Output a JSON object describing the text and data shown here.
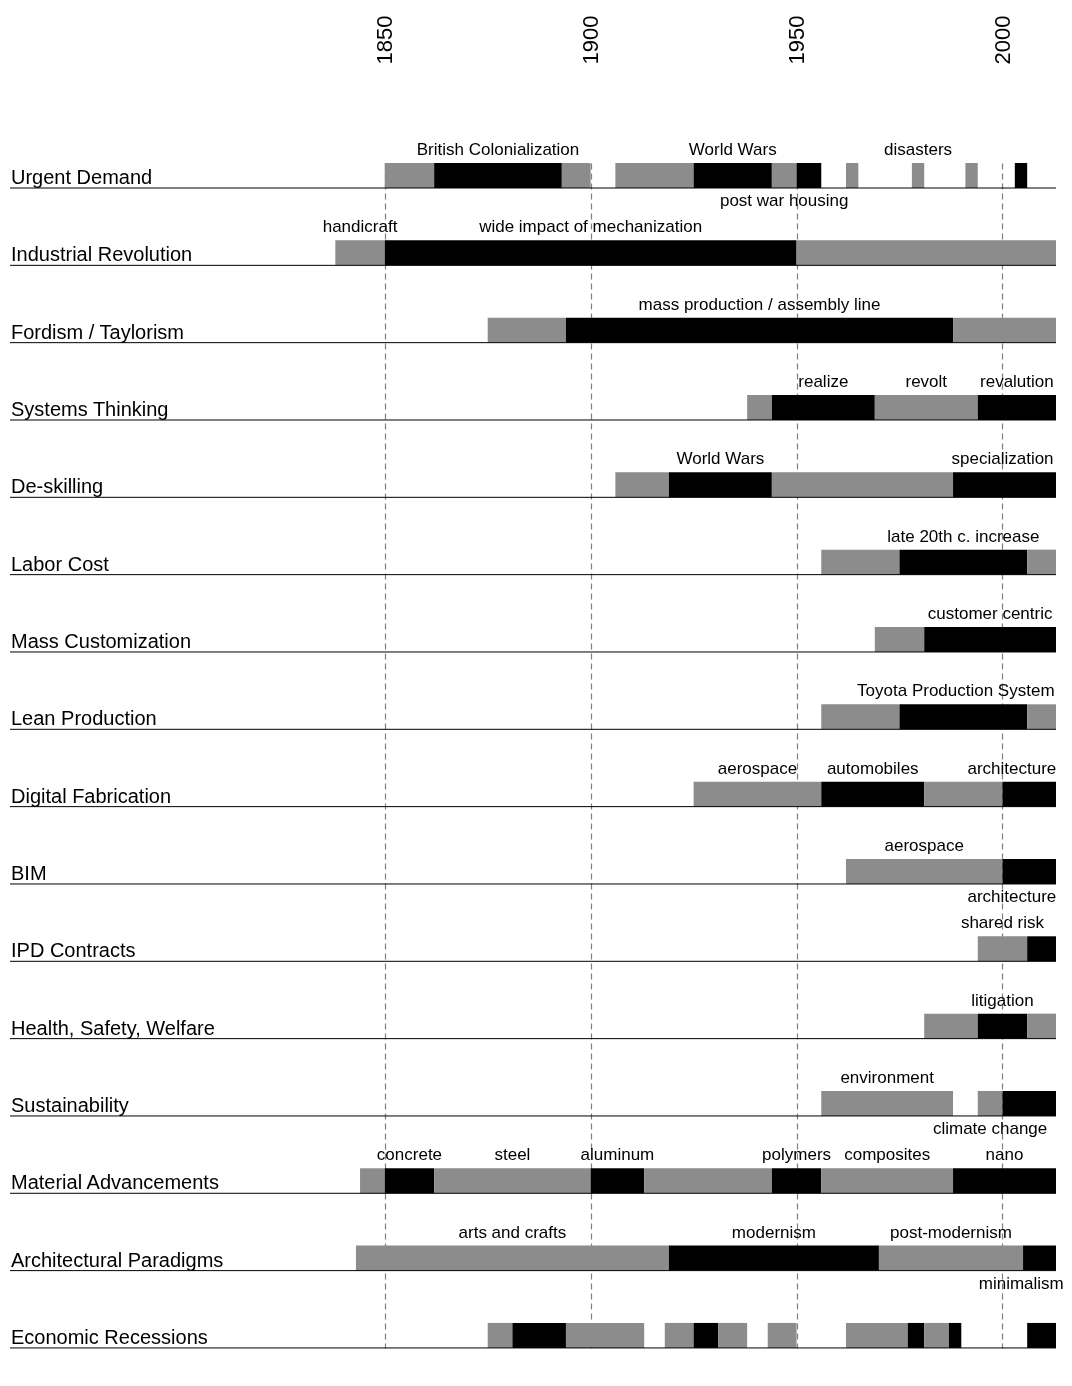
{
  "chart_data": {
    "type": "bar",
    "orientation": "horizontal",
    "grid": true,
    "categories": [
      "Urgent Demand",
      "Industrial Revolution",
      "Fordism / Taylorism",
      "Systems Thinking",
      "De-skilling",
      "Labor Cost",
      "Mass Customization",
      "Lean Production",
      "Digital Fabrication",
      "BIM",
      "IPD Contracts",
      "Health, Safety, Welfare",
      "Sustainability",
      "Material Advancements",
      "Architectural Paradigms",
      "Economic Recessions"
    ],
    "xlim": [
      1759,
      2013
    ],
    "xticks": [
      1850,
      1900,
      1950,
      2000
    ],
    "series": [
      {
        "base": [
          1850,
          1838,
          1875,
          1938,
          1906,
          1956,
          1969,
          1956,
          1925,
          1962,
          1994,
          1981,
          1956,
          1844,
          1843,
          1875
        ],
        "values": [
          12,
          12,
          19,
          6,
          13,
          19,
          12,
          19,
          31,
          38,
          12,
          13,
          32,
          6,
          76,
          6
        ],
        "colors": [
          "#8c8c8c",
          "#8c8c8c",
          "#8c8c8c",
          "#8c8c8c",
          "#8c8c8c",
          "#8c8c8c",
          "#8c8c8c",
          "#8c8c8c",
          "#8c8c8c",
          "#8c8c8c",
          "#8c8c8c",
          "#8c8c8c",
          "#8c8c8c",
          "#8c8c8c",
          "#8c8c8c",
          "#8c8c8c"
        ],
        "value_labels": [
          null,
          "handicraft",
          null,
          null,
          null,
          null,
          null,
          null,
          "aerospace",
          "aerospace",
          "shared risk",
          null,
          "environment",
          null,
          "arts and crafts",
          null
        ]
      },
      {
        "base": [
          1862,
          1850,
          1894,
          1944,
          1919,
          1975,
          1981,
          1975,
          1956,
          2000,
          2006,
          1994,
          1994,
          1850,
          1919,
          1881
        ],
        "values": [
          31,
          100,
          94,
          25,
          25,
          31,
          32,
          31,
          25,
          13,
          7,
          12,
          6,
          12,
          51,
          13
        ],
        "colors": [
          "#000000",
          "#000000",
          "#000000",
          "#000000",
          "#000000",
          "#000000",
          "#000000",
          "#000000",
          "#000000",
          "#000000",
          "#000000",
          "#000000",
          "#8c8c8c",
          "#000000",
          "#000000",
          "#000000"
        ],
        "value_labels": [
          "British Colonialization",
          "wide impact of mechanization",
          "mass production / assembly line",
          "realize",
          "World Wars",
          "late 20th c. increase",
          "customer centric",
          "Toyota Production System",
          "automobiles",
          "architecture",
          null,
          "litigation",
          "climate change",
          "concrete",
          "modernism",
          null
        ]
      },
      {
        "base": [
          1893,
          1950,
          1988,
          1969,
          1944,
          2006,
          null,
          2006,
          1981,
          null,
          null,
          2006,
          2000,
          1862,
          1970,
          1894
        ],
        "values": [
          7,
          63,
          25,
          25,
          44,
          7,
          null,
          7,
          19,
          null,
          null,
          7,
          13,
          38,
          35,
          19
        ],
        "colors": [
          "#8c8c8c",
          "#8c8c8c",
          "#8c8c8c",
          "#8c8c8c",
          "#8c8c8c",
          "#8c8c8c",
          null,
          "#8c8c8c",
          "#8c8c8c",
          null,
          null,
          "#8c8c8c",
          "#000000",
          "#8c8c8c",
          "#8c8c8c",
          "#8c8c8c"
        ],
        "value_labels": [
          null,
          null,
          null,
          "revolt",
          null,
          null,
          null,
          null,
          null,
          null,
          null,
          null,
          null,
          "steel",
          "post-modernism",
          null
        ]
      },
      {
        "base": [
          1906,
          null,
          null,
          1994,
          1988,
          null,
          null,
          null,
          2000,
          null,
          null,
          null,
          null,
          1900,
          2005,
          1918
        ],
        "values": [
          19,
          null,
          null,
          19,
          25,
          null,
          null,
          null,
          13,
          null,
          null,
          null,
          null,
          13,
          8,
          7
        ],
        "colors": [
          "#8c8c8c",
          null,
          null,
          "#000000",
          "#000000",
          null,
          null,
          null,
          "#000000",
          null,
          null,
          null,
          null,
          "#000000",
          "#000000",
          "#8c8c8c"
        ],
        "value_labels": [
          null,
          null,
          null,
          "revalution",
          "specialization",
          null,
          null,
          null,
          "architecture",
          null,
          null,
          null,
          null,
          "aluminum",
          "minimalism",
          null
        ]
      },
      {
        "base": [
          1925,
          null,
          null,
          null,
          null,
          null,
          null,
          null,
          null,
          null,
          null,
          null,
          null,
          1913,
          null,
          1925
        ],
        "values": [
          19,
          null,
          null,
          null,
          null,
          null,
          null,
          null,
          null,
          null,
          null,
          null,
          null,
          31,
          null,
          6
        ],
        "colors": [
          "#000000",
          null,
          null,
          null,
          null,
          null,
          null,
          null,
          null,
          null,
          null,
          null,
          null,
          "#8c8c8c",
          null,
          "#000000"
        ],
        "value_labels": [
          "World Wars",
          null,
          null,
          null,
          null,
          null,
          null,
          null,
          null,
          null,
          null,
          null,
          null,
          null,
          null,
          null
        ]
      },
      {
        "base": [
          1944,
          null,
          null,
          null,
          null,
          null,
          null,
          null,
          null,
          null,
          null,
          null,
          null,
          1944,
          null,
          1931
        ],
        "values": [
          6,
          null,
          null,
          null,
          null,
          null,
          null,
          null,
          null,
          null,
          null,
          null,
          null,
          12,
          null,
          7
        ],
        "colors": [
          "#8c8c8c",
          null,
          null,
          null,
          null,
          null,
          null,
          null,
          null,
          null,
          null,
          null,
          null,
          "#000000",
          null,
          "#8c8c8c"
        ],
        "value_labels": [
          "post war housing",
          null,
          null,
          null,
          null,
          null,
          null,
          null,
          null,
          null,
          null,
          null,
          null,
          "polymers",
          null,
          null
        ]
      },
      {
        "base": [
          1950,
          null,
          null,
          null,
          null,
          null,
          null,
          null,
          null,
          null,
          null,
          null,
          null,
          1956,
          null,
          1943
        ],
        "values": [
          6,
          null,
          null,
          null,
          null,
          null,
          null,
          null,
          null,
          null,
          null,
          null,
          null,
          32,
          null,
          7
        ],
        "colors": [
          "#000000",
          null,
          null,
          null,
          null,
          null,
          null,
          null,
          null,
          null,
          null,
          null,
          null,
          "#8c8c8c",
          null,
          "#8c8c8c"
        ],
        "value_labels": [
          null,
          null,
          null,
          null,
          null,
          null,
          null,
          null,
          null,
          null,
          null,
          null,
          null,
          "composites",
          null,
          null
        ]
      },
      {
        "base": [
          1962,
          null,
          null,
          null,
          null,
          null,
          null,
          null,
          null,
          null,
          null,
          null,
          null,
          1988,
          null,
          1962
        ],
        "values": [
          3,
          null,
          null,
          null,
          null,
          null,
          null,
          null,
          null,
          null,
          null,
          null,
          null,
          25,
          null,
          15
        ],
        "colors": [
          "#8c8c8c",
          null,
          null,
          null,
          null,
          null,
          null,
          null,
          null,
          null,
          null,
          null,
          null,
          "#000000",
          null,
          "#8c8c8c"
        ],
        "value_labels": [
          null,
          null,
          null,
          null,
          null,
          null,
          null,
          null,
          null,
          null,
          null,
          null,
          null,
          "nano",
          null,
          null
        ]
      },
      {
        "base": [
          1978,
          null,
          null,
          null,
          null,
          null,
          null,
          null,
          null,
          null,
          null,
          null,
          null,
          null,
          null,
          1977
        ],
        "values": [
          3,
          null,
          null,
          null,
          null,
          null,
          null,
          null,
          null,
          null,
          null,
          null,
          null,
          null,
          null,
          4
        ],
        "colors": [
          "#8c8c8c",
          null,
          null,
          null,
          null,
          null,
          null,
          null,
          null,
          null,
          null,
          null,
          null,
          null,
          null,
          "#000000"
        ],
        "value_labels": [
          "disasters",
          null,
          null,
          null,
          null,
          null,
          null,
          null,
          null,
          null,
          null,
          null,
          null,
          null,
          null,
          null
        ]
      },
      {
        "base": [
          1991,
          null,
          null,
          null,
          null,
          null,
          null,
          null,
          null,
          null,
          null,
          null,
          null,
          null,
          null,
          1981
        ],
        "values": [
          3,
          null,
          null,
          null,
          null,
          null,
          null,
          null,
          null,
          null,
          null,
          null,
          null,
          null,
          null,
          6
        ],
        "colors": [
          "#8c8c8c",
          null,
          null,
          null,
          null,
          null,
          null,
          null,
          null,
          null,
          null,
          null,
          null,
          null,
          null,
          "#8c8c8c"
        ]
      },
      {
        "base": [
          2003,
          null,
          null,
          null,
          null,
          null,
          null,
          null,
          null,
          null,
          null,
          null,
          null,
          null,
          null,
          1987
        ],
        "values": [
          3,
          null,
          null,
          null,
          null,
          null,
          null,
          null,
          null,
          null,
          null,
          null,
          null,
          null,
          null,
          3
        ],
        "colors": [
          "#000000",
          null,
          null,
          null,
          null,
          null,
          null,
          null,
          null,
          null,
          null,
          null,
          null,
          null,
          null,
          "#000000"
        ]
      },
      {
        "base": [
          null,
          null,
          null,
          null,
          null,
          null,
          null,
          null,
          null,
          null,
          null,
          null,
          null,
          null,
          null,
          2006
        ],
        "values": [
          null,
          null,
          null,
          null,
          null,
          null,
          null,
          null,
          null,
          null,
          null,
          null,
          null,
          null,
          null,
          7
        ],
        "colors": [
          null,
          null,
          null,
          null,
          null,
          null,
          null,
          null,
          null,
          null,
          null,
          null,
          null,
          null,
          null,
          "#000000"
        ]
      }
    ]
  }
}
